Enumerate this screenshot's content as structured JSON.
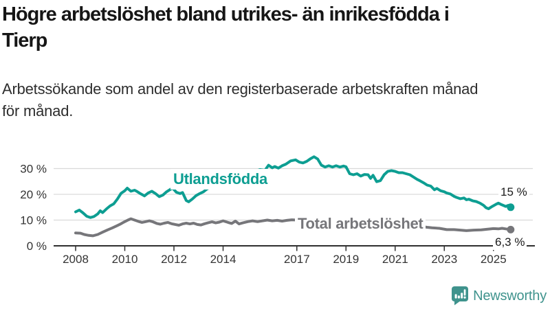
{
  "header": {
    "title": "Högre arbetslöshet bland utrikes- än inrikesfödda i Tierp",
    "title_lines": [
      "Högre arbetslöshet bland utrikes- än inrikesfödda i",
      "Tierp"
    ],
    "subtitle": "Arbetssökande som andel av den registerbaserade arbetskraften månad för månad.",
    "subtitle_lines": [
      "Arbetssökande som andel av den registerbaserade arbetskraften månad",
      "för månad."
    ]
  },
  "footer": {
    "brand": "Newsworthy",
    "brand_color": "#3F938D",
    "logo_icon": "bar-chart-speech-bubble-icon"
  },
  "chart_data": {
    "type": "line",
    "unit": "%",
    "legend_position": "inline",
    "grid": true,
    "x_axis": {
      "tick_values": [
        2008,
        2010,
        2012,
        2014,
        2017,
        2019,
        2021,
        2023,
        2025
      ],
      "tick_labels": [
        "2008",
        "2010",
        "2012",
        "2014",
        "2017",
        "2019",
        "2021",
        "2023",
        "2025"
      ],
      "range": [
        2007.5,
        2026.2
      ]
    },
    "y_axis": {
      "tick_values": [
        0,
        10,
        20,
        30
      ],
      "tick_labels": [
        "0 %",
        "10 %",
        "20 %",
        "30 %"
      ],
      "range": [
        0,
        37
      ]
    },
    "series": [
      {
        "name": "Utlandsfödda",
        "color": "#0D9E92",
        "end_label": "15 %",
        "end_value": 15,
        "points": [
          [
            2008.0,
            13.2
          ],
          [
            2008.15,
            13.9
          ],
          [
            2008.3,
            12.8
          ],
          [
            2008.45,
            11.5
          ],
          [
            2008.6,
            11.0
          ],
          [
            2008.75,
            11.4
          ],
          [
            2008.9,
            12.4
          ],
          [
            2009.0,
            13.6
          ],
          [
            2009.1,
            12.9
          ],
          [
            2009.25,
            14.3
          ],
          [
            2009.4,
            15.5
          ],
          [
            2009.55,
            16.3
          ],
          [
            2009.7,
            18.2
          ],
          [
            2009.85,
            20.4
          ],
          [
            2010.0,
            21.4
          ],
          [
            2010.1,
            22.4
          ],
          [
            2010.25,
            21.2
          ],
          [
            2010.4,
            21.6
          ],
          [
            2010.5,
            21.1
          ],
          [
            2010.65,
            20.2
          ],
          [
            2010.8,
            19.4
          ],
          [
            2010.95,
            20.5
          ],
          [
            2011.1,
            21.2
          ],
          [
            2011.25,
            20.3
          ],
          [
            2011.4,
            19.1
          ],
          [
            2011.55,
            19.7
          ],
          [
            2011.7,
            21.0
          ],
          [
            2011.85,
            21.9
          ],
          [
            2011.95,
            22.4
          ],
          [
            2012.1,
            20.8
          ],
          [
            2012.25,
            20.3
          ],
          [
            2012.35,
            20.7
          ],
          [
            2012.5,
            17.6
          ],
          [
            2012.6,
            17.1
          ],
          [
            2012.75,
            18.2
          ],
          [
            2012.9,
            19.5
          ],
          [
            2013.05,
            20.3
          ],
          [
            2013.2,
            21.0
          ],
          [
            2013.35,
            22.1
          ],
          [
            2013.55,
            23.2
          ],
          [
            2013.8,
            24.4
          ],
          [
            2014.05,
            25.5
          ],
          [
            2014.3,
            26.5
          ],
          [
            2014.55,
            27.4
          ],
          [
            2014.8,
            28.2
          ],
          [
            2015.05,
            28.8
          ],
          [
            2015.3,
            28.9
          ],
          [
            2015.5,
            29.6
          ],
          [
            2015.7,
            29.3
          ],
          [
            2015.85,
            31.3
          ],
          [
            2016.0,
            30.3
          ],
          [
            2016.1,
            30.8
          ],
          [
            2016.25,
            30.2
          ],
          [
            2016.4,
            31.1
          ],
          [
            2016.55,
            31.7
          ],
          [
            2016.75,
            33.0
          ],
          [
            2016.95,
            33.4
          ],
          [
            2017.1,
            32.5
          ],
          [
            2017.25,
            32.2
          ],
          [
            2017.4,
            32.8
          ],
          [
            2017.55,
            33.8
          ],
          [
            2017.7,
            34.6
          ],
          [
            2017.85,
            33.7
          ],
          [
            2018.0,
            31.3
          ],
          [
            2018.15,
            30.6
          ],
          [
            2018.3,
            31.1
          ],
          [
            2018.45,
            30.6
          ],
          [
            2018.6,
            31.1
          ],
          [
            2018.75,
            30.6
          ],
          [
            2018.9,
            31.0
          ],
          [
            2019.0,
            30.7
          ],
          [
            2019.15,
            28.0
          ],
          [
            2019.3,
            27.6
          ],
          [
            2019.45,
            28.0
          ],
          [
            2019.6,
            27.1
          ],
          [
            2019.75,
            27.7
          ],
          [
            2019.9,
            27.6
          ],
          [
            2020.0,
            26.2
          ],
          [
            2020.1,
            27.4
          ],
          [
            2020.25,
            24.9
          ],
          [
            2020.4,
            25.3
          ],
          [
            2020.55,
            27.6
          ],
          [
            2020.7,
            28.9
          ],
          [
            2020.85,
            29.2
          ],
          [
            2021.0,
            28.9
          ],
          [
            2021.15,
            28.4
          ],
          [
            2021.3,
            28.4
          ],
          [
            2021.45,
            28.0
          ],
          [
            2021.6,
            27.6
          ],
          [
            2021.75,
            26.7
          ],
          [
            2021.9,
            25.8
          ],
          [
            2022.0,
            25.3
          ],
          [
            2022.15,
            24.5
          ],
          [
            2022.3,
            23.6
          ],
          [
            2022.45,
            23.2
          ],
          [
            2022.6,
            21.8
          ],
          [
            2022.7,
            22.3
          ],
          [
            2022.85,
            21.4
          ],
          [
            2023.0,
            21.0
          ],
          [
            2023.1,
            20.5
          ],
          [
            2023.25,
            20.1
          ],
          [
            2023.4,
            19.2
          ],
          [
            2023.5,
            18.8
          ],
          [
            2023.65,
            18.3
          ],
          [
            2023.8,
            18.6
          ],
          [
            2023.9,
            17.9
          ],
          [
            2024.0,
            18.1
          ],
          [
            2024.15,
            17.5
          ],
          [
            2024.3,
            17.2
          ],
          [
            2024.45,
            16.6
          ],
          [
            2024.6,
            15.7
          ],
          [
            2024.7,
            14.8
          ],
          [
            2024.8,
            14.4
          ],
          [
            2024.95,
            15.3
          ],
          [
            2025.1,
            16.1
          ],
          [
            2025.2,
            16.6
          ],
          [
            2025.3,
            16.1
          ],
          [
            2025.4,
            15.7
          ],
          [
            2025.5,
            15.3
          ],
          [
            2025.6,
            15.7
          ],
          [
            2025.7,
            15.0
          ]
        ]
      },
      {
        "name": "Total arbetslöshet",
        "color": "#76767A",
        "end_label": "6,3 %",
        "end_value": 6.3,
        "points": [
          [
            2008.0,
            5.0
          ],
          [
            2008.2,
            4.9
          ],
          [
            2008.35,
            4.4
          ],
          [
            2008.5,
            4.1
          ],
          [
            2008.7,
            3.9
          ],
          [
            2008.9,
            4.4
          ],
          [
            2009.1,
            5.3
          ],
          [
            2009.3,
            6.2
          ],
          [
            2009.5,
            7.0
          ],
          [
            2009.7,
            7.9
          ],
          [
            2009.85,
            8.6
          ],
          [
            2010.0,
            9.4
          ],
          [
            2010.15,
            10.1
          ],
          [
            2010.25,
            10.5
          ],
          [
            2010.4,
            10.0
          ],
          [
            2010.55,
            9.5
          ],
          [
            2010.7,
            9.1
          ],
          [
            2010.85,
            9.4
          ],
          [
            2011.0,
            9.7
          ],
          [
            2011.15,
            9.3
          ],
          [
            2011.3,
            8.7
          ],
          [
            2011.45,
            8.4
          ],
          [
            2011.6,
            8.8
          ],
          [
            2011.75,
            9.1
          ],
          [
            2011.9,
            8.6
          ],
          [
            2012.05,
            8.3
          ],
          [
            2012.2,
            8.0
          ],
          [
            2012.35,
            8.5
          ],
          [
            2012.5,
            8.8
          ],
          [
            2012.65,
            8.5
          ],
          [
            2012.8,
            8.8
          ],
          [
            2012.95,
            8.3
          ],
          [
            2013.1,
            8.1
          ],
          [
            2013.25,
            8.6
          ],
          [
            2013.4,
            9.0
          ],
          [
            2013.55,
            9.3
          ],
          [
            2013.7,
            8.9
          ],
          [
            2013.85,
            9.2
          ],
          [
            2014.0,
            9.7
          ],
          [
            2014.2,
            9.1
          ],
          [
            2014.35,
            8.7
          ],
          [
            2014.5,
            9.6
          ],
          [
            2014.65,
            8.5
          ],
          [
            2014.8,
            8.9
          ],
          [
            2015.0,
            9.4
          ],
          [
            2015.2,
            9.7
          ],
          [
            2015.4,
            9.4
          ],
          [
            2015.6,
            9.7
          ],
          [
            2015.8,
            10.0
          ],
          [
            2016.0,
            9.7
          ],
          [
            2016.2,
            9.9
          ],
          [
            2016.4,
            9.6
          ],
          [
            2016.6,
            9.9
          ],
          [
            2016.8,
            10.1
          ],
          [
            2017.0,
            10.0
          ],
          [
            2017.3,
            9.7
          ],
          [
            2017.6,
            9.4
          ],
          [
            2018.0,
            9.0
          ],
          [
            2018.5,
            8.7
          ],
          [
            2019.0,
            8.5
          ],
          [
            2019.5,
            8.3
          ],
          [
            2020.0,
            8.6
          ],
          [
            2020.4,
            9.4
          ],
          [
            2020.8,
            9.2
          ],
          [
            2021.2,
            8.8
          ],
          [
            2021.6,
            8.2
          ],
          [
            2022.0,
            7.6
          ],
          [
            2022.3,
            7.2
          ],
          [
            2022.5,
            7.0
          ],
          [
            2022.8,
            6.8
          ],
          [
            2023.1,
            6.3
          ],
          [
            2023.4,
            6.3
          ],
          [
            2023.65,
            6.1
          ],
          [
            2023.9,
            5.9
          ],
          [
            2024.2,
            6.1
          ],
          [
            2024.5,
            6.2
          ],
          [
            2024.8,
            6.5
          ],
          [
            2025.0,
            6.7
          ],
          [
            2025.2,
            6.6
          ],
          [
            2025.35,
            6.8
          ],
          [
            2025.5,
            6.6
          ],
          [
            2025.7,
            6.3
          ]
        ]
      }
    ]
  }
}
